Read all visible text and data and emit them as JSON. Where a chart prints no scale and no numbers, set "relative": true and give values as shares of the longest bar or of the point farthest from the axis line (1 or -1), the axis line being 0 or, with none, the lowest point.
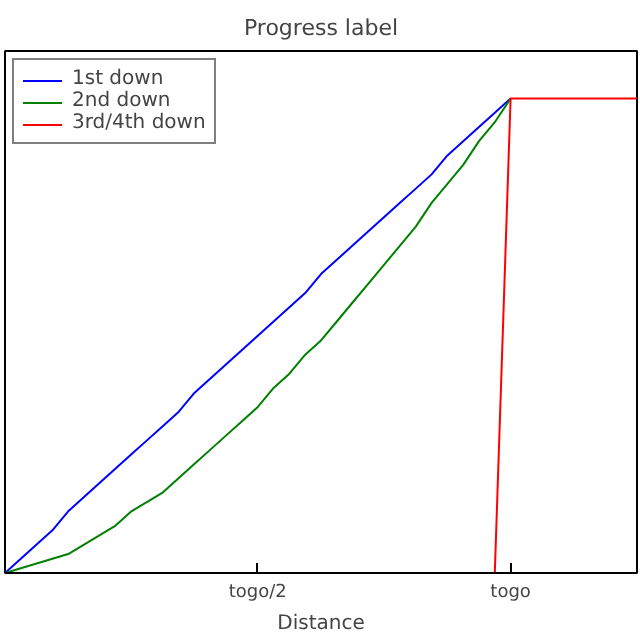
{
  "chart_data": {
    "type": "line",
    "title": "Progress label",
    "xlabel": "Distance",
    "relative": true,
    "categories": [
      null,
      null,
      null,
      null,
      null,
      null,
      null,
      null,
      null,
      null,
      null,
      null,
      null,
      null,
      null,
      null,
      "togo/2",
      null,
      null,
      null,
      null,
      null,
      null,
      null,
      null,
      null,
      null,
      null,
      null,
      null,
      null,
      null,
      "togo",
      null,
      null,
      null,
      null,
      null,
      null,
      null,
      null
    ],
    "series": [
      {
        "name": "1st down",
        "color": "#0000ff",
        "values": [
          0,
          0.03,
          0.06,
          0.09,
          0.13,
          0.16,
          0.19,
          0.22,
          0.25,
          0.28,
          0.31,
          0.34,
          0.38,
          0.41,
          0.44,
          0.47,
          0.5,
          0.53,
          0.56,
          0.59,
          0.63,
          0.66,
          0.69,
          0.72,
          0.75,
          0.78,
          0.81,
          0.84,
          0.88,
          0.91,
          0.94,
          0.97,
          1,
          null,
          null,
          null,
          null,
          null,
          null,
          null,
          null
        ]
      },
      {
        "name": "2nd down",
        "color": "#008000",
        "values": [
          0,
          0.01,
          0.02,
          0.03,
          0.04,
          0.06,
          0.08,
          0.1,
          0.13,
          0.15,
          0.17,
          0.2,
          0.23,
          0.26,
          0.29,
          0.32,
          0.35,
          0.39,
          0.42,
          0.46,
          0.49,
          0.53,
          0.57,
          0.61,
          0.65,
          0.69,
          0.73,
          0.78,
          0.82,
          0.86,
          0.91,
          0.95,
          1,
          null,
          null,
          null,
          null,
          null,
          null,
          null,
          null
        ]
      },
      {
        "name": "3rd/4th down",
        "color": "#ff0000",
        "values": [
          null,
          null,
          null,
          null,
          null,
          null,
          null,
          null,
          null,
          null,
          null,
          null,
          null,
          null,
          null,
          null,
          null,
          null,
          null,
          null,
          null,
          null,
          null,
          null,
          null,
          null,
          null,
          null,
          null,
          null,
          null,
          0,
          1,
          1,
          1,
          1,
          1,
          1,
          1,
          1,
          1
        ]
      }
    ],
    "legend": "top left",
    "grid": false,
    "marker": "none",
    "line_style": "solid"
  }
}
